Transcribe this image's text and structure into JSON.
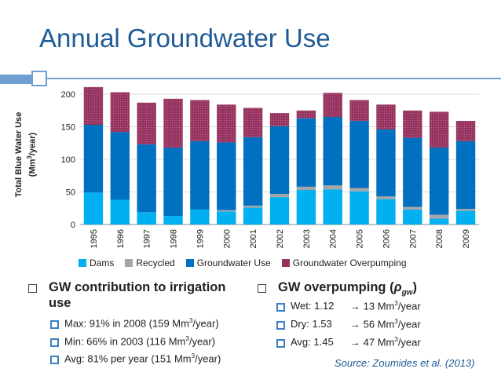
{
  "title": "Annual Groundwater Use",
  "chart_data": {
    "type": "bar",
    "stacked": true,
    "categories": [
      "1995",
      "1996",
      "1997",
      "1998",
      "1999",
      "2000",
      "2001",
      "2002",
      "2003",
      "2004",
      "2005",
      "2006",
      "2007",
      "2008",
      "2009"
    ],
    "ylabel_line1": "Total Blue Water Use",
    "ylabel_line2_prefix": "(Mm",
    "ylabel_line2_sup": "3",
    "ylabel_line2_suffix": "/year)",
    "ylim": [
      0,
      200
    ],
    "yticks": [
      0,
      50,
      100,
      150,
      200
    ],
    "series": [
      {
        "name": "Dams",
        "color": "#00b0f0",
        "values": [
          49,
          38,
          19,
          13,
          23,
          20,
          26,
          42,
          53,
          54,
          51,
          39,
          23,
          9,
          21
        ]
      },
      {
        "name": "Recycled",
        "color": "#a6a6a6",
        "values": [
          0,
          0,
          0,
          0,
          0,
          2,
          3,
          5,
          5,
          6,
          5,
          4,
          4,
          6,
          3
        ]
      },
      {
        "name": "Groundwater Use",
        "color": "#0070c0",
        "values": [
          104,
          104,
          104,
          105,
          105,
          104,
          105,
          104,
          105,
          105,
          103,
          103,
          106,
          103,
          104
        ]
      },
      {
        "name": "Groundwater Overpumping",
        "color": "#963460",
        "values": [
          58,
          61,
          64,
          75,
          63,
          58,
          45,
          20,
          12,
          37,
          32,
          38,
          42,
          55,
          31
        ]
      }
    ]
  },
  "left": {
    "heading_line1": "GW contribution to irrigation",
    "heading_line2": "use",
    "items": [
      {
        "pre": "Max: 91% in 2008 (159 Mm",
        "sup": "3",
        "post": "/year)"
      },
      {
        "pre": "Min: 66% in 2003 (116 Mm",
        "sup": "3",
        "post": "/year)"
      },
      {
        "pre": "Avg: 81% per year (151 Mm",
        "sup": "3",
        "post": "/year)"
      }
    ]
  },
  "right": {
    "heading_pre": "GW overpumping (",
    "heading_rho": "ρ",
    "heading_sub": "gw",
    "heading_post": ")",
    "items": [
      {
        "label": "Wet: 1.12",
        "arrow": "→",
        "pre": "13 Mm",
        "sup": "3",
        "post": "/year"
      },
      {
        "label": "Dry: 1.53",
        "arrow": "→",
        "pre": "56 Mm",
        "sup": "3",
        "post": "/year"
      },
      {
        "label": "Avg: 1.45",
        "arrow": "→",
        "pre": "47 Mm",
        "sup": "3",
        "post": "/year"
      }
    ]
  },
  "source": "Source: Zoumides et al. (2013)"
}
